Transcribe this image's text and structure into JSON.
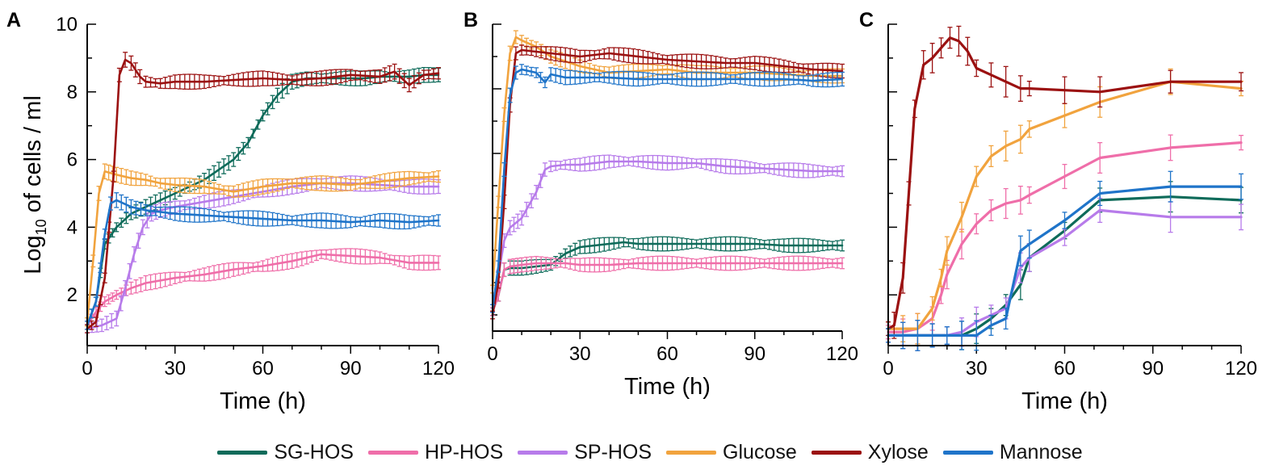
{
  "figure": {
    "y_axis_label_main": "Log",
    "y_axis_label_sub": "10",
    "y_axis_label_rest": " of cells / ml"
  },
  "legend": [
    {
      "name": "SG-HOS",
      "color": "#0e6b5a"
    },
    {
      "name": "HP-HOS",
      "color": "#ef6ea9"
    },
    {
      "name": "SP-HOS",
      "color": "#b77bea"
    },
    {
      "name": "Glucose",
      "color": "#f1a33e"
    },
    {
      "name": "Xylose",
      "color": "#9b1111"
    },
    {
      "name": "Mannose",
      "color": "#1f74c9"
    }
  ],
  "chart_data": [
    {
      "type": "line",
      "panel": "A",
      "xlabel": "Time (h)",
      "ylabel": "Log10 of cells / ml",
      "xlim": [
        0,
        120
      ],
      "ylim": [
        0.5,
        10
      ],
      "xticks": [
        0,
        30,
        60,
        90,
        120
      ],
      "yticks": [
        2,
        4,
        6,
        8,
        10
      ],
      "error_bars": "dense",
      "series": [
        {
          "name": "SG-HOS",
          "color": "#0e6b5a",
          "x": [
            0,
            3,
            6,
            10,
            15,
            20,
            25,
            30,
            35,
            40,
            45,
            50,
            55,
            60,
            65,
            70,
            75,
            80,
            85,
            90,
            95,
            100,
            105,
            110,
            115,
            120
          ],
          "y": [
            1.1,
            1.8,
            3.5,
            4.0,
            4.4,
            4.6,
            4.8,
            5.0,
            5.2,
            5.4,
            5.7,
            6.0,
            6.5,
            7.3,
            7.9,
            8.3,
            8.4,
            8.4,
            8.4,
            8.4,
            8.4,
            8.45,
            8.45,
            8.45,
            8.5,
            8.5
          ]
        },
        {
          "name": "HP-HOS",
          "color": "#ef6ea9",
          "x": [
            0,
            3,
            6,
            10,
            15,
            20,
            30,
            40,
            50,
            60,
            70,
            80,
            90,
            100,
            110,
            120
          ],
          "y": [
            1.1,
            1.5,
            1.8,
            2.0,
            2.2,
            2.35,
            2.5,
            2.6,
            2.75,
            2.85,
            3.0,
            3.2,
            3.15,
            3.1,
            2.95,
            2.95
          ]
        },
        {
          "name": "SP-HOS",
          "color": "#b77bea",
          "x": [
            0,
            5,
            10,
            13,
            16,
            19,
            22,
            25,
            30,
            40,
            50,
            60,
            70,
            80,
            90,
            100,
            110,
            120
          ],
          "y": [
            1.0,
            1.1,
            1.3,
            2.2,
            3.2,
            4.0,
            4.4,
            4.5,
            4.6,
            4.75,
            4.9,
            5.05,
            5.2,
            5.3,
            5.3,
            5.25,
            5.2,
            5.2
          ]
        },
        {
          "name": "Glucose",
          "color": "#f1a33e",
          "x": [
            0,
            2,
            4,
            6,
            10,
            15,
            20,
            25,
            30,
            40,
            50,
            60,
            70,
            80,
            90,
            100,
            110,
            120
          ],
          "y": [
            1.2,
            3.0,
            5.0,
            5.65,
            5.55,
            5.45,
            5.4,
            5.3,
            5.25,
            5.2,
            5.05,
            5.2,
            5.3,
            5.3,
            5.25,
            5.35,
            5.45,
            5.5
          ]
        },
        {
          "name": "Xylose",
          "color": "#9b1111",
          "x": [
            0,
            3,
            6,
            9,
            11,
            13,
            15,
            18,
            20,
            25,
            30,
            40,
            50,
            60,
            70,
            80,
            90,
            100,
            105,
            110,
            115,
            120
          ],
          "y": [
            1.0,
            1.2,
            2.5,
            5.5,
            8.5,
            8.95,
            8.85,
            8.45,
            8.3,
            8.25,
            8.3,
            8.3,
            8.35,
            8.4,
            8.35,
            8.4,
            8.5,
            8.45,
            8.6,
            8.2,
            8.5,
            8.55
          ]
        },
        {
          "name": "Mannose",
          "color": "#1f74c9",
          "x": [
            0,
            3,
            6,
            8,
            10,
            15,
            20,
            25,
            30,
            40,
            50,
            60,
            70,
            80,
            90,
            100,
            110,
            120
          ],
          "y": [
            1.1,
            1.8,
            3.8,
            4.7,
            4.8,
            4.6,
            4.5,
            4.45,
            4.4,
            4.35,
            4.3,
            4.25,
            4.2,
            4.2,
            4.15,
            4.2,
            4.15,
            4.2
          ]
        }
      ]
    },
    {
      "type": "line",
      "panel": "B",
      "xlabel": "Time (h)",
      "xlim": [
        0,
        120
      ],
      "ylim": [
        0.5,
        10
      ],
      "xticks": [
        0,
        30,
        60,
        90,
        120
      ],
      "yticks": [
        2,
        4,
        6,
        8,
        10
      ],
      "error_bars": "dense",
      "series": [
        {
          "name": "SG-HOS",
          "color": "#0e6b5a",
          "x": [
            0,
            2,
            4,
            6,
            10,
            15,
            20,
            25,
            30,
            35,
            40,
            45,
            50,
            60,
            70,
            80,
            90,
            100,
            110,
            120
          ],
          "y": [
            1.1,
            1.6,
            2.4,
            2.45,
            2.45,
            2.5,
            2.55,
            2.9,
            3.1,
            3.15,
            3.2,
            3.25,
            3.2,
            3.2,
            3.2,
            3.2,
            3.2,
            3.15,
            3.15,
            3.15
          ]
        },
        {
          "name": "HP-HOS",
          "color": "#ef6ea9",
          "x": [
            0,
            2,
            4,
            6,
            10,
            15,
            20,
            25,
            30,
            40,
            50,
            60,
            70,
            80,
            90,
            100,
            110,
            120
          ],
          "y": [
            1.1,
            1.6,
            2.4,
            2.5,
            2.55,
            2.6,
            2.6,
            2.6,
            2.55,
            2.55,
            2.6,
            2.6,
            2.6,
            2.6,
            2.6,
            2.6,
            2.6,
            2.6
          ]
        },
        {
          "name": "SP-HOS",
          "color": "#b77bea",
          "x": [
            0,
            2,
            4,
            6,
            10,
            15,
            18,
            20,
            25,
            30,
            40,
            50,
            60,
            70,
            80,
            90,
            100,
            110,
            120
          ],
          "y": [
            1.2,
            2.2,
            3.3,
            3.7,
            4.0,
            4.8,
            5.5,
            5.6,
            5.65,
            5.65,
            5.75,
            5.75,
            5.7,
            5.7,
            5.6,
            5.55,
            5.5,
            5.45,
            5.45
          ]
        },
        {
          "name": "Glucose",
          "color": "#f1a33e",
          "x": [
            0,
            2,
            4,
            6,
            8,
            10,
            15,
            20,
            30,
            40,
            50,
            60,
            70,
            80,
            90,
            100,
            110,
            120
          ],
          "y": [
            1.8,
            4.5,
            7.2,
            9.1,
            9.6,
            9.5,
            9.3,
            9.0,
            8.7,
            8.5,
            8.55,
            8.6,
            8.5,
            8.5,
            8.5,
            8.45,
            8.4,
            8.4
          ]
        },
        {
          "name": "Xylose",
          "color": "#9b1111",
          "x": [
            0,
            2,
            4,
            6,
            8,
            10,
            15,
            20,
            25,
            30,
            40,
            50,
            60,
            70,
            80,
            90,
            100,
            110,
            120
          ],
          "y": [
            1.0,
            2.0,
            4.5,
            7.5,
            9.1,
            9.2,
            9.15,
            9.1,
            9.05,
            9.0,
            9.1,
            9.0,
            8.9,
            8.85,
            8.8,
            8.8,
            8.7,
            8.6,
            8.55
          ]
        },
        {
          "name": "Mannose",
          "color": "#1f74c9",
          "x": [
            0,
            2,
            4,
            6,
            8,
            10,
            15,
            18,
            20,
            25,
            30,
            40,
            50,
            60,
            70,
            80,
            90,
            100,
            110,
            120
          ],
          "y": [
            1.2,
            2.5,
            5.5,
            7.8,
            8.5,
            8.6,
            8.5,
            8.2,
            8.45,
            8.35,
            8.35,
            8.35,
            8.3,
            8.3,
            8.3,
            8.3,
            8.3,
            8.3,
            8.25,
            8.3
          ]
        }
      ]
    },
    {
      "type": "line",
      "panel": "C",
      "xlabel": "Time (h)",
      "xlim": [
        0,
        120
      ],
      "ylim": [
        0.5,
        10
      ],
      "xticks": [
        0,
        30,
        60,
        90,
        120
      ],
      "yticks": [
        2,
        4,
        6,
        8,
        10
      ],
      "error_bars": "sparse",
      "series": [
        {
          "name": "SG-HOS",
          "color": "#0e6b5a",
          "x": [
            0,
            5,
            10,
            15,
            20,
            25,
            30,
            35,
            40,
            45,
            48,
            60,
            72,
            96,
            120
          ],
          "y": [
            0.8,
            0.8,
            0.8,
            0.8,
            0.8,
            0.8,
            1.0,
            1.3,
            1.7,
            2.3,
            3.1,
            3.9,
            4.8,
            4.9,
            4.8
          ]
        },
        {
          "name": "HP-HOS",
          "color": "#ef6ea9",
          "x": [
            0,
            5,
            10,
            15,
            18,
            20,
            25,
            30,
            35,
            40,
            45,
            48,
            60,
            72,
            96,
            120
          ],
          "y": [
            0.9,
            0.9,
            1.0,
            1.3,
            2.0,
            2.6,
            3.5,
            4.1,
            4.5,
            4.7,
            4.8,
            4.95,
            5.5,
            6.05,
            6.35,
            6.5
          ]
        },
        {
          "name": "SP-HOS",
          "color": "#b77bea",
          "x": [
            0,
            5,
            10,
            15,
            20,
            25,
            30,
            35,
            40,
            45,
            48,
            60,
            72,
            96,
            120
          ],
          "y": [
            0.8,
            0.8,
            0.8,
            0.8,
            0.8,
            0.9,
            1.2,
            1.4,
            1.6,
            2.8,
            3.1,
            3.7,
            4.5,
            4.3,
            4.3
          ]
        },
        {
          "name": "Glucose",
          "color": "#f1a33e",
          "x": [
            0,
            5,
            10,
            15,
            18,
            20,
            25,
            30,
            35,
            40,
            45,
            48,
            60,
            72,
            96,
            120
          ],
          "y": [
            1.0,
            1.0,
            1.0,
            1.6,
            2.5,
            3.3,
            4.3,
            5.5,
            6.1,
            6.4,
            6.6,
            6.9,
            7.3,
            7.7,
            8.3,
            8.1
          ]
        },
        {
          "name": "Xylose",
          "color": "#9b1111",
          "x": [
            0,
            2,
            5,
            7,
            9,
            12,
            15,
            18,
            21,
            24,
            27,
            30,
            35,
            40,
            45,
            48,
            60,
            72,
            96,
            120
          ],
          "y": [
            1.0,
            1.1,
            2.5,
            5.0,
            7.5,
            8.8,
            9.0,
            9.3,
            9.6,
            9.5,
            9.2,
            8.7,
            8.5,
            8.3,
            8.1,
            8.1,
            8.05,
            8.0,
            8.3,
            8.3
          ]
        },
        {
          "name": "Mannose",
          "color": "#1f74c9",
          "x": [
            0,
            5,
            10,
            15,
            20,
            25,
            30,
            35,
            40,
            45,
            48,
            60,
            72,
            96,
            120
          ],
          "y": [
            0.8,
            0.8,
            0.8,
            0.8,
            0.8,
            0.8,
            0.8,
            1.1,
            1.3,
            3.3,
            3.5,
            4.2,
            5.0,
            5.2,
            5.2
          ]
        }
      ]
    }
  ]
}
